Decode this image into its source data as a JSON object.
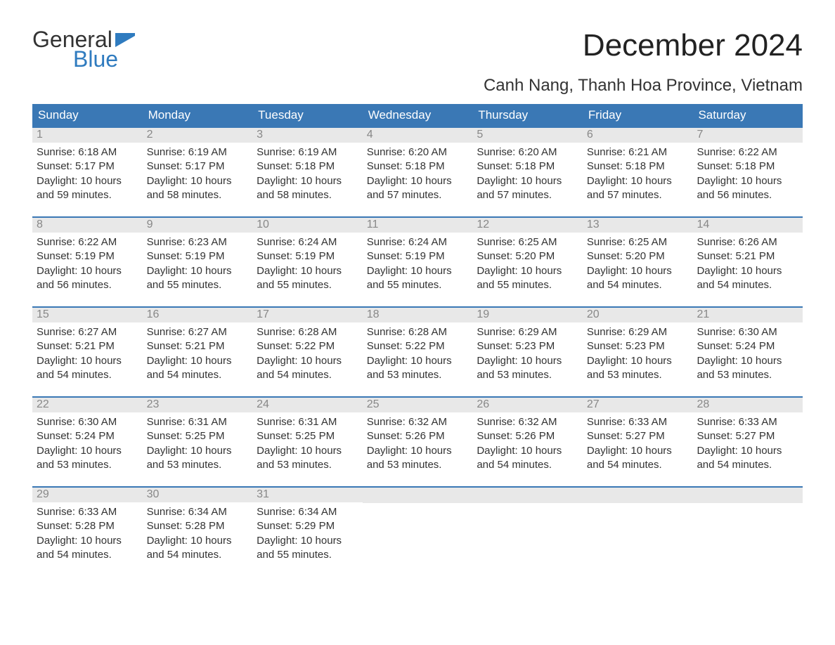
{
  "logo": {
    "line1": "General",
    "line2": "Blue"
  },
  "title": "December 2024",
  "subtitle": "Canh Nang, Thanh Hoa Province, Vietnam",
  "labels": {
    "sunrise": "Sunrise: ",
    "sunset": "Sunset: ",
    "daylight": "Daylight: "
  },
  "colors": {
    "header_bg": "#3a78b5",
    "header_text": "#ffffff",
    "row_divider": "#3a78b5",
    "day_band_bg": "#e8e8e8",
    "day_number_text": "#888888",
    "body_text": "#333333",
    "logo_blue": "#2f7bbf",
    "background": "#ffffff"
  },
  "typography": {
    "title_fontsize": 44,
    "subtitle_fontsize": 24,
    "dayheader_fontsize": 17,
    "daynumber_fontsize": 16,
    "body_fontsize": 15,
    "logo_fontsize": 32
  },
  "layout": {
    "columns": 7,
    "rows": 5,
    "leading_blanks": 0,
    "trailing_blanks": 4
  },
  "day_headers": [
    "Sunday",
    "Monday",
    "Tuesday",
    "Wednesday",
    "Thursday",
    "Friday",
    "Saturday"
  ],
  "days": [
    {
      "n": "1",
      "sunrise": "6:18 AM",
      "sunset": "5:17 PM",
      "daylight": "10 hours and 59 minutes."
    },
    {
      "n": "2",
      "sunrise": "6:19 AM",
      "sunset": "5:17 PM",
      "daylight": "10 hours and 58 minutes."
    },
    {
      "n": "3",
      "sunrise": "6:19 AM",
      "sunset": "5:18 PM",
      "daylight": "10 hours and 58 minutes."
    },
    {
      "n": "4",
      "sunrise": "6:20 AM",
      "sunset": "5:18 PM",
      "daylight": "10 hours and 57 minutes."
    },
    {
      "n": "5",
      "sunrise": "6:20 AM",
      "sunset": "5:18 PM",
      "daylight": "10 hours and 57 minutes."
    },
    {
      "n": "6",
      "sunrise": "6:21 AM",
      "sunset": "5:18 PM",
      "daylight": "10 hours and 57 minutes."
    },
    {
      "n": "7",
      "sunrise": "6:22 AM",
      "sunset": "5:18 PM",
      "daylight": "10 hours and 56 minutes."
    },
    {
      "n": "8",
      "sunrise": "6:22 AM",
      "sunset": "5:19 PM",
      "daylight": "10 hours and 56 minutes."
    },
    {
      "n": "9",
      "sunrise": "6:23 AM",
      "sunset": "5:19 PM",
      "daylight": "10 hours and 55 minutes."
    },
    {
      "n": "10",
      "sunrise": "6:24 AM",
      "sunset": "5:19 PM",
      "daylight": "10 hours and 55 minutes."
    },
    {
      "n": "11",
      "sunrise": "6:24 AM",
      "sunset": "5:19 PM",
      "daylight": "10 hours and 55 minutes."
    },
    {
      "n": "12",
      "sunrise": "6:25 AM",
      "sunset": "5:20 PM",
      "daylight": "10 hours and 55 minutes."
    },
    {
      "n": "13",
      "sunrise": "6:25 AM",
      "sunset": "5:20 PM",
      "daylight": "10 hours and 54 minutes."
    },
    {
      "n": "14",
      "sunrise": "6:26 AM",
      "sunset": "5:21 PM",
      "daylight": "10 hours and 54 minutes."
    },
    {
      "n": "15",
      "sunrise": "6:27 AM",
      "sunset": "5:21 PM",
      "daylight": "10 hours and 54 minutes."
    },
    {
      "n": "16",
      "sunrise": "6:27 AM",
      "sunset": "5:21 PM",
      "daylight": "10 hours and 54 minutes."
    },
    {
      "n": "17",
      "sunrise": "6:28 AM",
      "sunset": "5:22 PM",
      "daylight": "10 hours and 54 minutes."
    },
    {
      "n": "18",
      "sunrise": "6:28 AM",
      "sunset": "5:22 PM",
      "daylight": "10 hours and 53 minutes."
    },
    {
      "n": "19",
      "sunrise": "6:29 AM",
      "sunset": "5:23 PM",
      "daylight": "10 hours and 53 minutes."
    },
    {
      "n": "20",
      "sunrise": "6:29 AM",
      "sunset": "5:23 PM",
      "daylight": "10 hours and 53 minutes."
    },
    {
      "n": "21",
      "sunrise": "6:30 AM",
      "sunset": "5:24 PM",
      "daylight": "10 hours and 53 minutes."
    },
    {
      "n": "22",
      "sunrise": "6:30 AM",
      "sunset": "5:24 PM",
      "daylight": "10 hours and 53 minutes."
    },
    {
      "n": "23",
      "sunrise": "6:31 AM",
      "sunset": "5:25 PM",
      "daylight": "10 hours and 53 minutes."
    },
    {
      "n": "24",
      "sunrise": "6:31 AM",
      "sunset": "5:25 PM",
      "daylight": "10 hours and 53 minutes."
    },
    {
      "n": "25",
      "sunrise": "6:32 AM",
      "sunset": "5:26 PM",
      "daylight": "10 hours and 53 minutes."
    },
    {
      "n": "26",
      "sunrise": "6:32 AM",
      "sunset": "5:26 PM",
      "daylight": "10 hours and 54 minutes."
    },
    {
      "n": "27",
      "sunrise": "6:33 AM",
      "sunset": "5:27 PM",
      "daylight": "10 hours and 54 minutes."
    },
    {
      "n": "28",
      "sunrise": "6:33 AM",
      "sunset": "5:27 PM",
      "daylight": "10 hours and 54 minutes."
    },
    {
      "n": "29",
      "sunrise": "6:33 AM",
      "sunset": "5:28 PM",
      "daylight": "10 hours and 54 minutes."
    },
    {
      "n": "30",
      "sunrise": "6:34 AM",
      "sunset": "5:28 PM",
      "daylight": "10 hours and 54 minutes."
    },
    {
      "n": "31",
      "sunrise": "6:34 AM",
      "sunset": "5:29 PM",
      "daylight": "10 hours and 55 minutes."
    }
  ]
}
